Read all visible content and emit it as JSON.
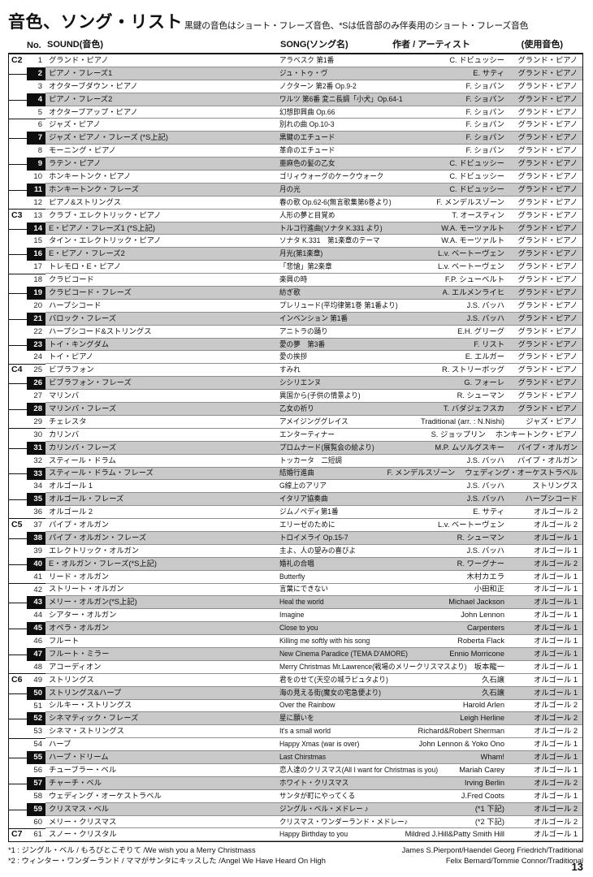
{
  "page": {
    "title": "音色、ソング・リスト",
    "subtitle": "黒鍵の音色はショート・フレーズ音色、*Sは低音部のみ伴奏用のショート・フレーズ音色",
    "page_number": "13"
  },
  "colors": {
    "shade": "#c9c9c9",
    "key_black": "#0e0e0e"
  },
  "table": {
    "headers": {
      "no": "No.",
      "sound": "SOUND(音色)",
      "song": "SONG(ソング名)",
      "artist": "作者 / アーティスト",
      "tone": "(使用音色)"
    },
    "rows": [
      {
        "no": 1,
        "octave": "C2",
        "key": "white",
        "sound": "グランド・ピアノ",
        "song": "アラベスク 第1番",
        "artist": "C. ドビュッシー",
        "tone": "グランド・ピアノ"
      },
      {
        "no": 2,
        "key": "black",
        "sound": "ピアノ・フレーズ1",
        "song": "ジュ・トゥ・ヴ",
        "artist": "E. サティ",
        "tone": "グランド・ピアノ"
      },
      {
        "no": 3,
        "key": "white",
        "sound": "オクターブダウン・ピアノ",
        "song": "ノクターン 第2番 Op.9-2",
        "artist": "F. ショパン",
        "tone": "グランド・ピアノ"
      },
      {
        "no": 4,
        "key": "black",
        "sound": "ピアノ・フレーズ2",
        "song": "ワルツ 第6番 変ニ長調「小犬」Op.64-1",
        "artist": "F. ショパン",
        "tone": "グランド・ピアノ"
      },
      {
        "no": 5,
        "key": "white",
        "sound": "オクターブアップ・ピアノ",
        "song": "幻想即興曲 Op.66",
        "artist": "F. ショパン",
        "tone": "グランド・ピアノ"
      },
      {
        "no": 6,
        "key": "white",
        "sound": "ジャズ・ピアノ",
        "song": "別れの曲 Op.10-3",
        "artist": "F. ショパン",
        "tone": "グランド・ピアノ"
      },
      {
        "no": 7,
        "key": "black",
        "sound": "ジャズ・ピアノ・フレーズ (*S上記)",
        "song": "黒鍵のエチュード",
        "artist": "F. ショパン",
        "tone": "グランド・ピアノ"
      },
      {
        "no": 8,
        "key": "white",
        "sound": "モーニング・ピアノ",
        "song": "革命のエチュード",
        "artist": "F. ショパン",
        "tone": "グランド・ピアノ"
      },
      {
        "no": 9,
        "key": "black",
        "sound": "ラテン・ピアノ",
        "song": "亜麻色の髪の乙女",
        "artist": "C. ドビュッシー",
        "tone": "グランド・ピアノ"
      },
      {
        "no": 10,
        "key": "white",
        "sound": "ホンキートンク・ピアノ",
        "song": "ゴリィウォーグのケークウォーク",
        "artist": "C. ドビュッシー",
        "tone": "グランド・ピアノ"
      },
      {
        "no": 11,
        "key": "black",
        "sound": "ホンキートンク・フレーズ",
        "song": "月の光",
        "artist": "C. ドビュッシー",
        "tone": "グランド・ピアノ"
      },
      {
        "no": 12,
        "key": "white",
        "sound": "ピアノ&ストリングス",
        "song": "春の歌 Op.62-6(無言歌集第6巻より)",
        "artist": "F. メンデルスゾーン",
        "tone": "グランド・ピアノ"
      },
      {
        "no": 13,
        "octave": "C3",
        "key": "white",
        "sound": "クラブ・エレクトリック・ピアノ",
        "song": "人形の夢と目覚め",
        "artist": "T. オースティン",
        "tone": "グランド・ピアノ"
      },
      {
        "no": 14,
        "key": "black",
        "sound": "E・ピアノ・フレーズ1 (*S上記)",
        "song": "トルコ行進曲(ソナタ K.331 より)",
        "artist": "W.A. モーツァルト",
        "tone": "グランド・ピアノ"
      },
      {
        "no": 15,
        "key": "white",
        "sound": "タイン・エレクトリック・ピアノ",
        "song": "ソナタ K.331　第1楽章のテーマ",
        "artist": "W.A. モーツァルト",
        "tone": "グランド・ピアノ"
      },
      {
        "no": 16,
        "key": "black",
        "sound": "E・ピアノ・フレーズ2",
        "song": "月光(第1楽章)",
        "artist": "L.v. ベートーヴェン",
        "tone": "グランド・ピアノ"
      },
      {
        "no": 17,
        "key": "white",
        "sound": "トレモロ・E・ピアノ",
        "song": "「悲愴」第2楽章",
        "artist": "L.v. ベートーヴェン",
        "tone": "グランド・ピアノ"
      },
      {
        "no": 18,
        "key": "white",
        "sound": "クラビコード",
        "song": "楽興の時",
        "artist": "F.P. シューベルト",
        "tone": "グランド・ピアノ"
      },
      {
        "no": 19,
        "key": "black",
        "sound": "クラビコード・フレーズ",
        "song": "紡ぎ歌",
        "artist": "A. エルメンライヒ",
        "tone": "グランド・ピアノ"
      },
      {
        "no": 20,
        "key": "white",
        "sound": "ハープシコード",
        "song": "プレリュード(平均律第1巻 第1番より)",
        "artist": "J.S. バッハ",
        "tone": "グランド・ピアノ"
      },
      {
        "no": 21,
        "key": "black",
        "sound": "バロック・フレーズ",
        "song": "インベンション 第1番",
        "artist": "J.S. バッハ",
        "tone": "グランド・ピアノ"
      },
      {
        "no": 22,
        "key": "white",
        "sound": "ハープシコード&ストリングス",
        "song": "アニトラの踊り",
        "artist": "E.H. グリーグ",
        "tone": "グランド・ピアノ"
      },
      {
        "no": 23,
        "key": "black",
        "sound": "トイ・キングダム",
        "song": "愛の夢　第3番",
        "artist": "F. リスト",
        "tone": "グランド・ピアノ"
      },
      {
        "no": 24,
        "key": "white",
        "sound": "トイ・ピアノ",
        "song": "愛の挨拶",
        "artist": "E. エルガー",
        "tone": "グランド・ピアノ"
      },
      {
        "no": 25,
        "octave": "C4",
        "key": "white",
        "sound": "ビブラフォン",
        "song": "すみれ",
        "artist": "R. ストリーボッグ",
        "tone": "グランド・ピアノ"
      },
      {
        "no": 26,
        "key": "black",
        "sound": "ビブラフォン・フレーズ",
        "song": "シシリエンヌ",
        "artist": "G. フォーレ",
        "tone": "グランド・ピアノ"
      },
      {
        "no": 27,
        "key": "white",
        "sound": "マリンバ",
        "song": "異国から(子供の情景より)",
        "artist": "R. シューマン",
        "tone": "グランド・ピアノ"
      },
      {
        "no": 28,
        "key": "black",
        "sound": "マリンバ・フレーズ",
        "song": "乙女の祈り",
        "artist": "T. バダジェフスカ",
        "tone": "グランド・ピアノ"
      },
      {
        "no": 29,
        "key": "white",
        "sound": "チェレスタ",
        "song": "アメイジンググレイス",
        "artist": "Traditional (arr. : N.Nishi)",
        "tone": "ジャズ・ピアノ"
      },
      {
        "no": 30,
        "key": "white",
        "sound": "カリンバ",
        "song": "エンターティナー",
        "artist": "S. ジョップリン",
        "tone": "ホンキートンク・ピアノ"
      },
      {
        "no": 31,
        "key": "black",
        "sound": "カリンバ・フレーズ",
        "song": "プロムナード(展覧会の絵より)",
        "artist": "M.P. ムソルグスキー",
        "tone": "パイプ・オルガン"
      },
      {
        "no": 32,
        "key": "white",
        "sound": "スティール・ドラム",
        "song": "トッカータ　二短調",
        "artist": "J.S. バッハ",
        "tone": "パイプ・オルガン"
      },
      {
        "no": 33,
        "key": "black",
        "sound": "スティール・ドラム・フレーズ",
        "song": "結婚行進曲",
        "artist": "F. メンデルスゾーン",
        "tone": "ウェディング・オーケストラベル"
      },
      {
        "no": 34,
        "key": "white",
        "sound": "オルゴール 1",
        "song": "G線上のアリア",
        "artist": "J.S. バッハ",
        "tone": "ストリングス"
      },
      {
        "no": 35,
        "key": "black",
        "sound": "オルゴール・フレーズ",
        "song": "イタリア協奏曲",
        "artist": "J.S. バッハ",
        "tone": "ハープシコード"
      },
      {
        "no": 36,
        "key": "white",
        "sound": "オルゴール 2",
        "song": "ジムノペディ第1番",
        "artist": "E. サティ",
        "tone": "オルゴール 2"
      },
      {
        "no": 37,
        "octave": "C5",
        "key": "white",
        "sound": "パイプ・オルガン",
        "song": "エリーゼのために",
        "artist": "L.v. ベートーヴェン",
        "tone": "オルゴール 2"
      },
      {
        "no": 38,
        "key": "black",
        "sound": "パイプ・オルガン・フレーズ",
        "song": "トロイメライ Op.15-7",
        "artist": "R. シューマン",
        "tone": "オルゴール 1"
      },
      {
        "no": 39,
        "key": "white",
        "sound": "エレクトリック・オルガン",
        "song": "主よ、人の望みの喜びよ",
        "artist": "J.S. バッハ",
        "tone": "オルゴール 1"
      },
      {
        "no": 40,
        "key": "black",
        "sound": "E・オルガン・フレーズ(*S上記)",
        "song": "婚礼の合唱",
        "artist": "R. ワーグナー",
        "tone": "オルゴール 2"
      },
      {
        "no": 41,
        "key": "white",
        "sound": "リード・オルガン",
        "song": "Butterfly",
        "artist": "木村カエラ",
        "tone": "オルゴール 1"
      },
      {
        "no": 42,
        "key": "white",
        "sound": "ストリート・オルガン",
        "song": "言葉にできない",
        "artist": "小田和正",
        "tone": "オルゴール 1"
      },
      {
        "no": 43,
        "key": "black",
        "sound": "メリー・オルガン(*S上記)",
        "song": "Heal the world",
        "artist": "Michael Jackson",
        "tone": "オルゴール 1"
      },
      {
        "no": 44,
        "key": "white",
        "sound": "シアター・オルガン",
        "song": "Imagine",
        "artist": "John Lennon",
        "tone": "オルゴール 1"
      },
      {
        "no": 45,
        "key": "black",
        "sound": "オペラ・オルガン",
        "song": "Close to you",
        "artist": "Carpenters",
        "tone": "オルゴール 1"
      },
      {
        "no": 46,
        "key": "white",
        "sound": "フルート",
        "song": "Killing me softly with his song",
        "artist": "Roberta Flack",
        "tone": "オルゴール 1"
      },
      {
        "no": 47,
        "key": "black",
        "sound": "フルート・ミラー",
        "song": "New Cinema Paradice (TEMA D'AMORE)",
        "artist": "Ennio Morricone",
        "tone": "オルゴール 1"
      },
      {
        "no": 48,
        "key": "white",
        "sound": "アコーディオン",
        "song": "Merry Christmas Mr.Lawrence(戦場のメリークリスマスより)",
        "artist": "坂本龍一",
        "tone": "オルゴール 1"
      },
      {
        "no": 49,
        "octave": "C6",
        "key": "white",
        "sound": "ストリングス",
        "song": "君をのせて(天空の城ラピュタより)",
        "artist": "久石譲",
        "tone": "オルゴール 1"
      },
      {
        "no": 50,
        "key": "black",
        "sound": "ストリングス&ハープ",
        "song": "海の見える街(魔女の宅急便より)",
        "artist": "久石譲",
        "tone": "オルゴール 1"
      },
      {
        "no": 51,
        "key": "white",
        "sound": "シルキー・ストリングス",
        "song": "Over the Rainbow",
        "artist": "Harold Arlen",
        "tone": "オルゴール 2"
      },
      {
        "no": 52,
        "key": "black",
        "sound": "シネマティック・フレーズ",
        "song": "星に願いを",
        "artist": "Leigh Herline",
        "tone": "オルゴール 2"
      },
      {
        "no": 53,
        "key": "white",
        "sound": "シネマ・ストリングス",
        "song": "It's a small world",
        "artist": "Richard&Robert Sherman",
        "tone": "オルゴール 2"
      },
      {
        "no": 54,
        "key": "white",
        "sound": "ハープ",
        "song": "Happy Xmas (war is over)",
        "artist": "John Lennon & Yoko Ono",
        "tone": "オルゴール 1"
      },
      {
        "no": 55,
        "key": "black",
        "sound": "ハープ・ドリーム",
        "song": "Last Chirstmas",
        "artist": "Wham!",
        "tone": "オルゴール 1"
      },
      {
        "no": 56,
        "key": "white",
        "sound": "チューブラー・ベル",
        "song": "恋人達のクリスマス(All I want for Christmas is you)",
        "artist": "Mariah Carey",
        "tone": "オルゴール 1"
      },
      {
        "no": 57,
        "key": "black",
        "sound": "チャーチ・ベル",
        "song": "ホワイト・クリスマス",
        "artist": "Irving Berlin",
        "tone": "オルゴール 2"
      },
      {
        "no": 58,
        "key": "white",
        "sound": "ウェディング・オーケストラベル",
        "song": "サンタが町にやってくる",
        "artist": "J.Fred Coots",
        "tone": "オルゴール 1"
      },
      {
        "no": 59,
        "key": "black",
        "sound": "クリスマス・ベル",
        "song": "ジングル・ベル・メドレー ♪",
        "artist": "(*1 下記)",
        "tone": "オルゴール 2"
      },
      {
        "no": 60,
        "key": "white",
        "sound": "メリー・クリスマス",
        "song": "クリスマス・ワンダーランド・メドレー♪",
        "artist": "(*2 下記)",
        "tone": "オルゴール 2"
      },
      {
        "no": 61,
        "octave": "C7",
        "key": "white",
        "sound": "スノー・クリスタル",
        "song": "Happy Birthday to you",
        "artist": "Mildred J.Hill&Patty Smith Hill",
        "tone": "オルゴール 1"
      }
    ]
  },
  "footnotes": [
    {
      "text": "*1 : ジングル・ベル / もろびとこぞりて /We wish you a Merry Christmass",
      "credits": "James S.Pierpont/Haendel Georg Friedrich/Traditional"
    },
    {
      "text": "*2 : ウィンター・ワンダーランド / ママがサンタにキッスした /Angel We Have Heard On High",
      "credits": "Felix Bernard/Tommie Connor/Traditional"
    }
  ]
}
